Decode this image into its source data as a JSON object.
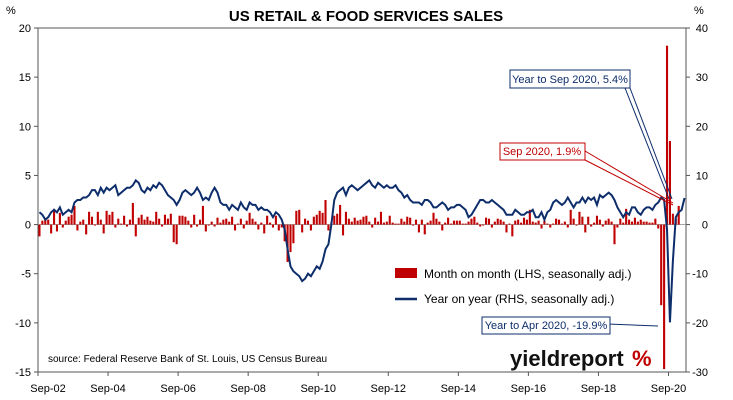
{
  "chart_data": {
    "type": "bar+line",
    "title": "US RETAIL & FOOD SERVICES SALES",
    "left_axis": {
      "unit_label": "%",
      "ticks": [
        20,
        15,
        10,
        5,
        0,
        -5,
        -10,
        -15
      ],
      "range": [
        -15,
        20
      ]
    },
    "right_axis": {
      "unit_label": "%",
      "ticks": [
        40,
        30,
        20,
        10,
        0,
        -10,
        -20,
        -30
      ],
      "range": [
        -30,
        40
      ]
    },
    "x_axis": {
      "ticks": [
        "Sep-02",
        "Sep-04",
        "Sep-06",
        "Sep-08",
        "Sep-10",
        "Sep-12",
        "Sep-14",
        "Sep-16",
        "Sep-18",
        "Sep-20"
      ]
    },
    "series": [
      {
        "name": "Month on month (LHS, seasonally adj.)",
        "type": "bar",
        "axis": "left",
        "color": "#c00000",
        "start": "2002-09",
        "values": [
          -1.2,
          0.4,
          0.6,
          0.5,
          -0.9,
          1.6,
          -0.7,
          1.2,
          -0.3,
          0.4,
          0.8,
          1.0,
          1.9,
          -0.6,
          0.3,
          0.5,
          -1.0,
          1.3,
          0.8,
          -0.1,
          1.3,
          0.5,
          -0.9,
          1.4,
          1.0,
          1.3,
          -0.3,
          0.6,
          0.1,
          0.9,
          -0.2,
          0.5,
          2.2,
          -1.2,
          0.7,
          1.0,
          0.5,
          0.8,
          0.4,
          0.3,
          1.3,
          0.6,
          -0.2,
          1.0,
          0.6,
          1.1,
          -1.8,
          -2.0,
          0.9,
          0.9,
          0.8,
          0.4,
          -0.3,
          1.0,
          -0.2,
          0.5,
          1.9,
          -0.7,
          -0.1,
          0.3,
          -0.2,
          0.7,
          0.2,
          0.5,
          0.6,
          0.3,
          0.8,
          -0.6,
          0.1,
          0.6,
          -0.4,
          0.4,
          1.2,
          0.6,
          0.3,
          -0.5,
          0.2,
          -0.9,
          0.9,
          0.2,
          -0.3,
          0.9,
          -0.6,
          -0.3,
          -1.7,
          -3.8,
          -2.8,
          -1.9,
          1.4,
          1.5,
          -0.8,
          0.6,
          0.4,
          -0.6,
          0.8,
          1.0,
          1.4,
          1.2,
          2.5,
          -0.6,
          0.2,
          0.9,
          1.1,
          2.0,
          -1.1,
          1.3,
          0.6,
          0.3,
          0.7,
          0.4,
          0.5,
          0.8,
          0.9,
          0.3,
          -0.3,
          0.7,
          0.3,
          1.3,
          0.2,
          0.3,
          0.9,
          0.2,
          0.1,
          0.1,
          0.6,
          0.3,
          0.8,
          0.7,
          -0.1,
          0.5,
          -0.8,
          0.5,
          -1.0,
          0.2,
          0.4,
          1.2,
          0.6,
          0.3,
          -0.6,
          0.2,
          0.7,
          0.1,
          0.4,
          0.4,
          0.4,
          0.1,
          0.1,
          0.3,
          0.6,
          0.8,
          0.2,
          -0.2,
          -0.1,
          0.7,
          0.6,
          -0.3,
          0.3,
          0.6,
          0.5,
          0.3,
          -0.8,
          0.1,
          -1.2,
          0.4,
          0.5,
          0.2,
          0.7,
          0.5,
          1.5,
          0.3,
          0.2,
          0.4,
          -0.4,
          0.4,
          0.1,
          -0.3,
          0.1,
          0.6,
          0.5,
          0.1,
          0.3,
          -0.3,
          1.5,
          0.6,
          -0.1,
          1.3,
          0.8,
          -0.8,
          0.8,
          -0.2,
          0.2,
          0.9,
          0.5,
          -0.2,
          0.4,
          0.6,
          0.3,
          -2.0,
          -0.3,
          0.6,
          0.2,
          1.6,
          0.5,
          0.3,
          0.7,
          0.3,
          0.5,
          0.3,
          0.3,
          0.2,
          0.2,
          0.6,
          -0.4,
          -8.2,
          -14.7,
          18.2,
          8.5,
          1.1,
          0.6,
          1.9
        ]
      },
      {
        "name": "Year on year (RHS, seasonally adj.)",
        "type": "line",
        "axis": "right",
        "color": "#0d2d6b",
        "start": "2002-09",
        "values": [
          2.5,
          2.0,
          1.0,
          1.5,
          2.5,
          3.0,
          2.5,
          3.5,
          2.0,
          2.5,
          3.0,
          2.5,
          4.5,
          5.0,
          5.0,
          5.5,
          5.5,
          6.0,
          7.0,
          7.0,
          6.0,
          7.5,
          6.5,
          7.5,
          7.0,
          7.5,
          8.0,
          6.0,
          6.5,
          7.0,
          7.5,
          7.5,
          8.0,
          9.0,
          8.5,
          7.0,
          6.5,
          7.5,
          7.0,
          8.0,
          7.5,
          8.5,
          8.0,
          7.0,
          6.0,
          5.5,
          5.0,
          4.0,
          5.0,
          6.5,
          7.0,
          6.5,
          6.0,
          6.5,
          7.5,
          6.5,
          5.0,
          5.5,
          5.0,
          6.5,
          7.5,
          6.5,
          4.5,
          4.0,
          4.0,
          3.0,
          4.0,
          3.5,
          3.0,
          4.5,
          3.5,
          3.0,
          4.5,
          4.0,
          4.0,
          3.0,
          3.5,
          3.0,
          3.0,
          2.5,
          1.5,
          2.5,
          2.0,
          1.0,
          -1.0,
          -5.0,
          -8.5,
          -9.5,
          -10.0,
          -10.5,
          -11.5,
          -11.0,
          -10.0,
          -10.5,
          -9.5,
          -8.5,
          -9.0,
          -7.5,
          -5.0,
          -4.0,
          0.0,
          5.0,
          6.5,
          7.0,
          7.5,
          6.0,
          7.5,
          8.0,
          7.5,
          7.0,
          7.5,
          8.0,
          8.5,
          9.0,
          8.0,
          7.5,
          8.5,
          8.0,
          7.5,
          8.0,
          7.5,
          7.5,
          8.0,
          7.0,
          6.5,
          5.5,
          6.0,
          5.0,
          4.5,
          4.5,
          4.5,
          4.0,
          5.0,
          5.0,
          4.5,
          3.5,
          3.5,
          4.0,
          4.5,
          4.0,
          3.0,
          3.5,
          3.5,
          4.0,
          4.0,
          3.5,
          3.0,
          1.5,
          2.0,
          3.0,
          4.0,
          5.0,
          5.0,
          4.5,
          4.5,
          5.0,
          4.5,
          4.0,
          3.5,
          3.0,
          2.0,
          2.0,
          2.0,
          3.0,
          2.5,
          2.0,
          2.0,
          2.5,
          2.5,
          3.0,
          1.5,
          1.5,
          2.5,
          1.0,
          2.5,
          3.0,
          4.5,
          5.0,
          4.5,
          4.0,
          4.5,
          5.5,
          4.5,
          3.5,
          4.5,
          4.5,
          5.5,
          4.5,
          5.5,
          5.0,
          5.5,
          4.0,
          6.0,
          5.5,
          6.0,
          6.5,
          6.0,
          5.0,
          3.5,
          2.5,
          1.5,
          2.5,
          2.0,
          3.5,
          3.5,
          2.5,
          2.0,
          3.0,
          3.5,
          3.5,
          3.0,
          4.0,
          4.5,
          5.5,
          5.0,
          -1.0,
          -19.9,
          -7.5,
          1.5,
          2.5,
          3.0,
          5.4
        ]
      }
    ],
    "annotations": [
      {
        "text": "Year to Sep 2020, 5.4%",
        "color": "#0d2d6b"
      },
      {
        "text": "Sep 2020, 1.9%",
        "color": "#c00000"
      },
      {
        "text": "Year to Apr 2020, -19.9%",
        "color": "#0d2d6b"
      }
    ],
    "source": "source: Federal Reserve Bank of St. Louis, US Census Bureau",
    "logo": {
      "main": "yieldreport",
      "mark": "%"
    }
  }
}
